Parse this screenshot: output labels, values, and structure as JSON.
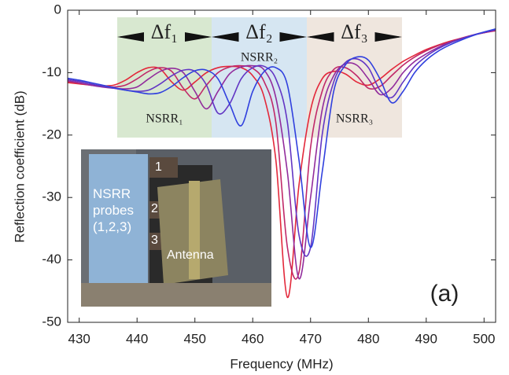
{
  "chart_data": {
    "type": "line",
    "x_label": "Frequency (MHz)",
    "y_label": "Reflection coefficient (dB)",
    "xlim": [
      428,
      502
    ],
    "ylim": [
      -50,
      0
    ],
    "xticks": [
      430,
      440,
      450,
      460,
      470,
      480,
      490,
      500
    ],
    "yticks": [
      -50,
      -40,
      -30,
      -20,
      -10,
      0
    ],
    "x": [
      428,
      430,
      432,
      434,
      436,
      438,
      440,
      442,
      444,
      446,
      448,
      450,
      452,
      454,
      456,
      458,
      460,
      462,
      464,
      466,
      468,
      470,
      472,
      474,
      476,
      478,
      480,
      482,
      484,
      486,
      488,
      490,
      492,
      494,
      496,
      498,
      500,
      502
    ],
    "series": [
      {
        "color": "#e3283a",
        "values": [
          -11.6,
          -11.8,
          -12,
          -12.1,
          -12,
          -11.2,
          -10,
          -9.2,
          -9.4,
          -11.5,
          -12.8,
          -11.5,
          -10,
          -9.2,
          -9,
          -9.2,
          -10.5,
          -14,
          -24,
          -46,
          -28,
          -16,
          -11,
          -9.8,
          -10.2,
          -11.5,
          -12,
          -11,
          -9.5,
          -8.2,
          -7.2,
          -6.3,
          -5.6,
          -5,
          -4.5,
          -4,
          -3.6,
          -3.3
        ]
      },
      {
        "color": "#c02868",
        "values": [
          -11.4,
          -11.7,
          -12,
          -12.2,
          -12.3,
          -12,
          -11,
          -9.8,
          -9.2,
          -9.8,
          -12.5,
          -14.2,
          -12,
          -10,
          -9.1,
          -8.9,
          -9.3,
          -11.5,
          -18,
          -38,
          -42,
          -22,
          -13,
          -9.5,
          -9.2,
          -10.5,
          -12.5,
          -12.2,
          -10.5,
          -8.8,
          -7.5,
          -6.5,
          -5.7,
          -5.1,
          -4.5,
          -4,
          -3.6,
          -3.2
        ]
      },
      {
        "color": "#922c9c",
        "values": [
          -11.3,
          -11.6,
          -12,
          -12.3,
          -12.5,
          -12.6,
          -12.3,
          -11,
          -9.8,
          -9.3,
          -10,
          -13,
          -15.8,
          -13,
          -10.2,
          -9.1,
          -8.9,
          -9.6,
          -14,
          -26,
          -43,
          -30,
          -16,
          -10.5,
          -8.6,
          -8.8,
          -11,
          -13.5,
          -12.5,
          -10,
          -8.2,
          -7,
          -6,
          -5.2,
          -4.6,
          -4,
          -3.6,
          -3.2
        ]
      },
      {
        "color": "#6236c4",
        "values": [
          -11.1,
          -11.4,
          -11.8,
          -12.2,
          -12.5,
          -12.8,
          -13,
          -12.8,
          -11.8,
          -10.5,
          -9.6,
          -9.8,
          -12,
          -16.5,
          -15,
          -11,
          -9.2,
          -9,
          -11,
          -18,
          -36,
          -38,
          -20,
          -11.5,
          -8.4,
          -7.8,
          -9.2,
          -12.8,
          -14,
          -11.5,
          -9,
          -7.4,
          -6.2,
          -5.3,
          -4.6,
          -4,
          -3.5,
          -3.1
        ]
      },
      {
        "color": "#3040de",
        "values": [
          -10.9,
          -11.2,
          -11.6,
          -12,
          -12.4,
          -12.8,
          -13.1,
          -13.4,
          -13.2,
          -12.2,
          -10.8,
          -9.7,
          -9.6,
          -11,
          -15,
          -18.5,
          -13,
          -9.8,
          -9.2,
          -12,
          -24,
          -38,
          -26,
          -13,
          -8.8,
          -7.5,
          -8,
          -11,
          -14.8,
          -13,
          -10,
          -8,
          -6.6,
          -5.6,
          -4.8,
          -4.1,
          -3.5,
          -3
        ]
      }
    ],
    "bands": [
      {
        "label": "Δf₁",
        "sensor": "NSRR₁",
        "color": "#d8e8d0"
      },
      {
        "label": "Δf₂",
        "sensor": "NSRR₂",
        "color": "#d6e6f2"
      },
      {
        "label": "Δf₃",
        "sensor": "NSRR₃",
        "color": "#efe6de"
      }
    ],
    "inset": {
      "probes": "NSRR probes (1,2,3)",
      "numbers": [
        "1",
        "2",
        "3"
      ],
      "antenna": "Antenna"
    },
    "panel_label": "(a)"
  }
}
